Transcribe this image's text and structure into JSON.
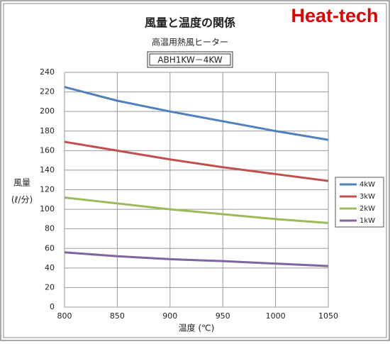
{
  "chart_data": {
    "type": "line",
    "title": "風量と温度の関係",
    "subtitle": "高温用熱風ヒーター",
    "model": "ABH1KW－4KW",
    "brand": "Heat-tech",
    "x_label": "温度 (℃)",
    "y_label": [
      "風量",
      "(ℓ/分)"
    ],
    "x": [
      800,
      850,
      900,
      950,
      1000,
      1050
    ],
    "series": [
      {
        "name": "4kW",
        "color": "#4f81bd",
        "values": [
          225,
          211,
          200,
          190,
          180,
          171
        ]
      },
      {
        "name": "3kW",
        "color": "#c0504d",
        "values": [
          169,
          160,
          151,
          143,
          136,
          129
        ]
      },
      {
        "name": "2kW",
        "color": "#9bbb59",
        "values": [
          112,
          106,
          100,
          95,
          90,
          86
        ]
      },
      {
        "name": "1kW",
        "color": "#8064a2",
        "values": [
          56,
          52,
          49,
          47,
          44.5,
          42
        ]
      }
    ],
    "xlim": [
      800,
      1050
    ],
    "xticks": [
      800,
      850,
      900,
      950,
      1000,
      1050
    ],
    "ylim": [
      0,
      240
    ],
    "yticks": [
      0,
      20,
      40,
      60,
      80,
      100,
      120,
      140,
      160,
      180,
      200,
      220,
      240
    ],
    "grid": true,
    "legend": "right"
  }
}
